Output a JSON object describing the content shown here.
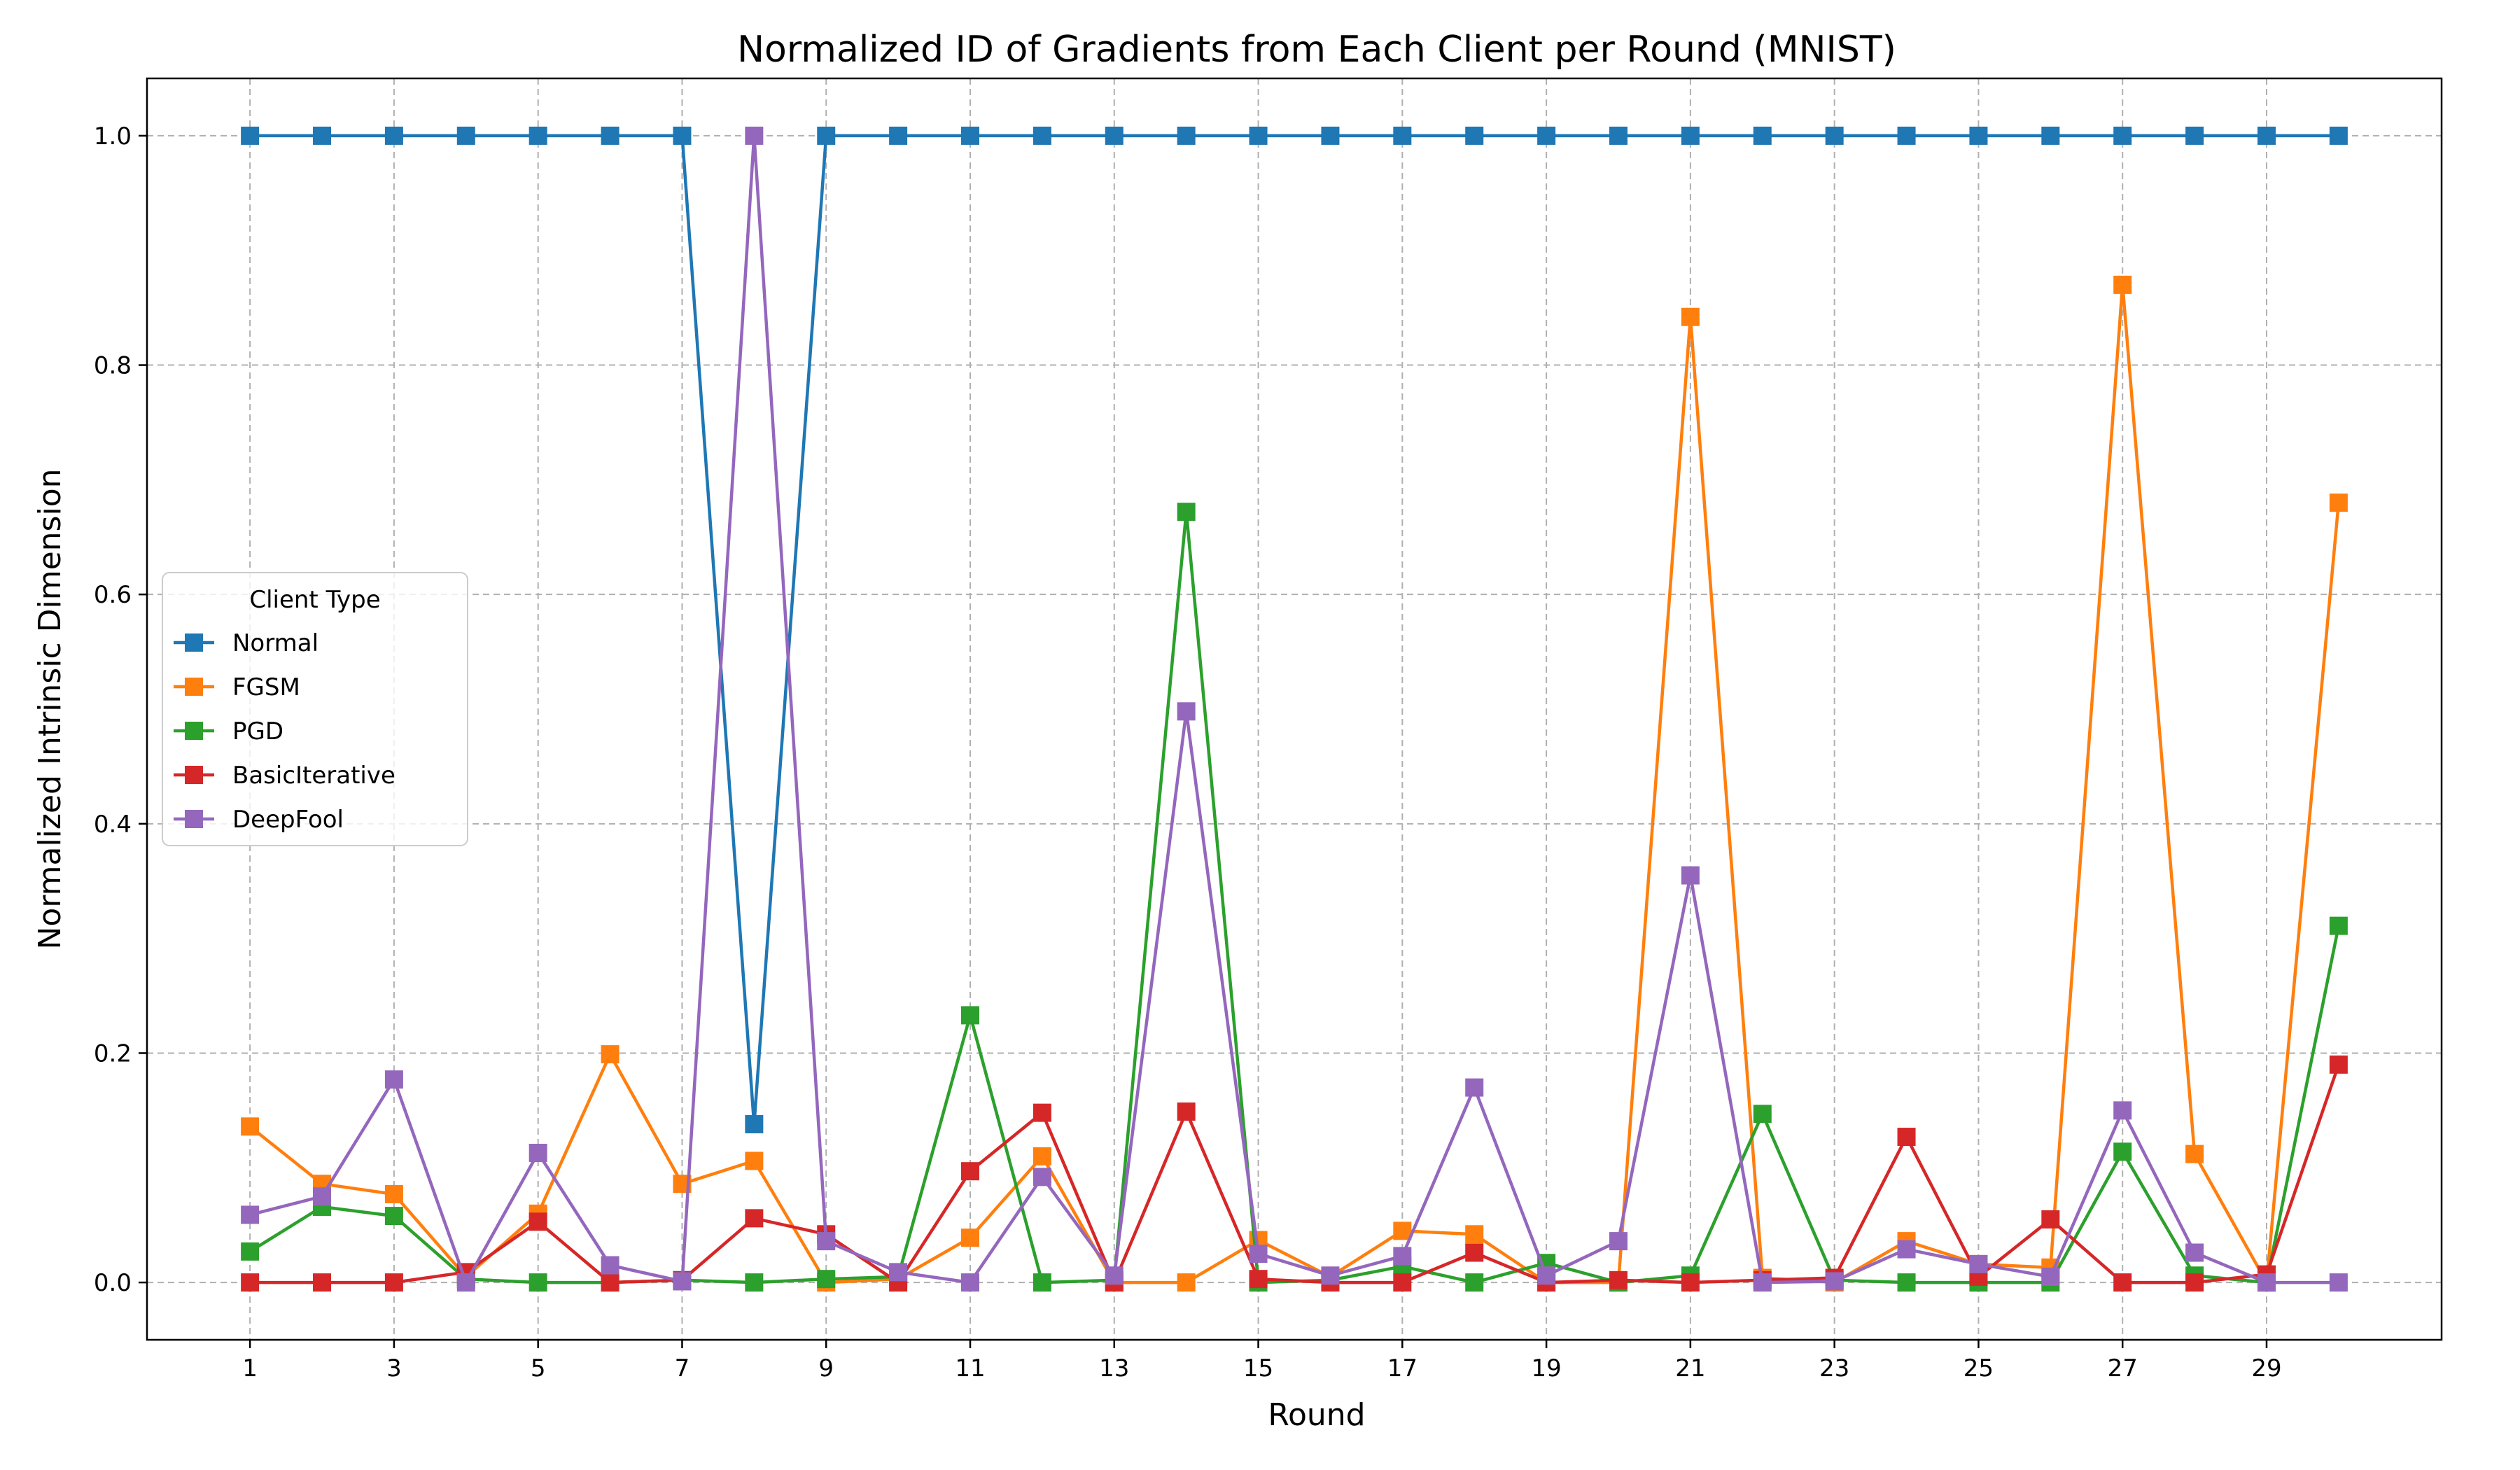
{
  "chart_data": {
    "type": "line",
    "title": "Normalized ID of Gradients from Each Client per Round (MNIST)",
    "xlabel": "Round",
    "ylabel": "Normalized Intrinsic Dimension",
    "xlim": [
      -0.43,
      31.43
    ],
    "ylim": [
      -0.05,
      1.05
    ],
    "xticks": [
      1,
      3,
      5,
      7,
      9,
      11,
      13,
      15,
      17,
      19,
      21,
      23,
      25,
      27,
      29
    ],
    "xtick_labels": [
      "1",
      "3",
      "5",
      "7",
      "9",
      "11",
      "13",
      "15",
      "17",
      "19",
      "21",
      "23",
      "25",
      "27",
      "29"
    ],
    "yticks": [
      0.0,
      0.2,
      0.4,
      0.6,
      0.8,
      1.0
    ],
    "ytick_labels": [
      "0.0",
      "0.2",
      "0.4",
      "0.6",
      "0.8",
      "1.0"
    ],
    "grid": true,
    "legend_title": "Client Type",
    "legend_position": "center-left",
    "x": [
      1,
      2,
      3,
      4,
      5,
      6,
      7,
      8,
      9,
      10,
      11,
      12,
      13,
      14,
      15,
      16,
      17,
      18,
      19,
      20,
      21,
      22,
      23,
      24,
      25,
      26,
      27,
      28,
      29,
      30
    ],
    "series": [
      {
        "name": "Normal",
        "color": "#1f77b4",
        "marker": "square",
        "values": [
          1.0,
          1.0,
          1.0,
          1.0,
          1.0,
          1.0,
          1.0,
          0.138,
          1.0,
          1.0,
          1.0,
          1.0,
          1.0,
          1.0,
          1.0,
          1.0,
          1.0,
          1.0,
          1.0,
          1.0,
          1.0,
          1.0,
          1.0,
          1.0,
          1.0,
          1.0,
          1.0,
          1.0,
          1.0,
          1.0
        ]
      },
      {
        "name": "FGSM",
        "color": "#ff7f0e",
        "marker": "square",
        "values": [
          0.136,
          0.086,
          0.077,
          0.005,
          0.06,
          0.199,
          0.086,
          0.106,
          0.0,
          0.003,
          0.039,
          0.11,
          0.0,
          0.0,
          0.037,
          0.005,
          0.045,
          0.042,
          0.0,
          0.0,
          0.842,
          0.004,
          0.0,
          0.036,
          0.016,
          0.013,
          0.87,
          0.112,
          0.0,
          0.68
        ]
      },
      {
        "name": "PGD",
        "color": "#2ca02c",
        "marker": "square",
        "values": [
          0.027,
          0.066,
          0.058,
          0.003,
          0.0,
          0.0,
          0.002,
          0.0,
          0.003,
          0.005,
          0.233,
          0.0,
          0.002,
          0.672,
          0.0,
          0.002,
          0.014,
          0.0,
          0.017,
          0.0,
          0.006,
          0.147,
          0.002,
          0.0,
          0.0,
          0.0,
          0.114,
          0.006,
          0.0,
          0.311
        ]
      },
      {
        "name": "BasicIterative",
        "color": "#d62728",
        "marker": "square",
        "values": [
          0.0,
          0.0,
          0.0,
          0.009,
          0.053,
          0.0,
          0.002,
          0.056,
          0.042,
          0.0,
          0.097,
          0.148,
          0.0,
          0.149,
          0.003,
          0.0,
          0.0,
          0.026,
          0.0,
          0.002,
          0.0,
          0.002,
          0.004,
          0.127,
          0.005,
          0.055,
          0.0,
          0.0,
          0.007,
          0.19
        ]
      },
      {
        "name": "DeepFool",
        "color": "#9467bd",
        "marker": "square",
        "values": [
          0.059,
          0.075,
          0.177,
          0.0,
          0.113,
          0.015,
          0.001,
          1.0,
          0.036,
          0.009,
          0.0,
          0.092,
          0.006,
          0.498,
          0.025,
          0.006,
          0.023,
          0.17,
          0.006,
          0.036,
          0.355,
          0.0,
          0.001,
          0.029,
          0.016,
          0.005,
          0.15,
          0.026,
          0.0,
          0.0
        ]
      }
    ]
  }
}
